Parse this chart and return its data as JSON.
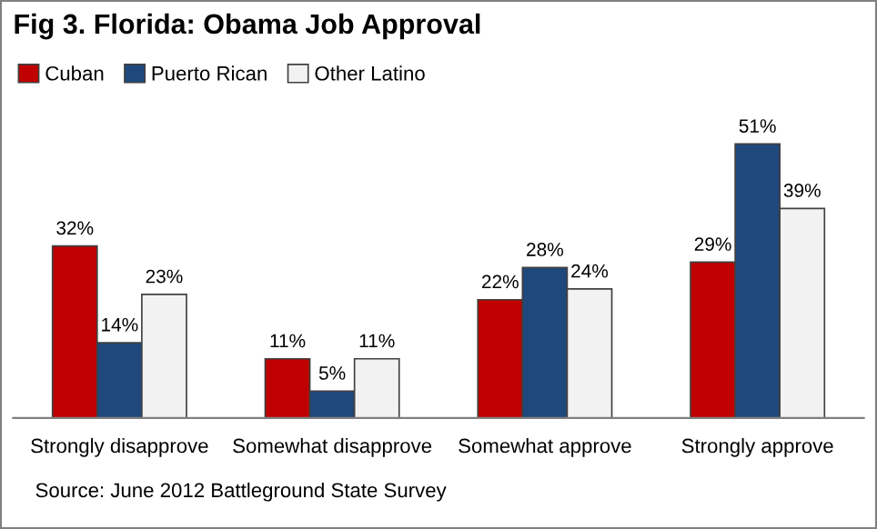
{
  "chart_data": {
    "type": "bar",
    "title": "Fig 3. Florida: Obama Job Approval",
    "categories": [
      "Strongly disapprove",
      "Somewhat disapprove",
      "Somewhat approve",
      "Strongly approve"
    ],
    "series": [
      {
        "name": "Cuban",
        "color": "#c00000",
        "values": [
          32,
          11,
          22,
          29
        ],
        "value_labels": [
          "32%",
          "11%",
          "22%",
          "29%"
        ]
      },
      {
        "name": "Puerto Rican",
        "color": "#1f497d",
        "values": [
          14,
          5,
          28,
          51
        ],
        "value_labels": [
          "14%",
          "5%",
          "28%",
          "51%"
        ]
      },
      {
        "name": "Other Latino",
        "color": "#f2f2f2",
        "values": [
          23,
          11,
          24,
          39
        ],
        "value_labels": [
          "23%",
          "11%",
          "24%",
          "39%"
        ]
      }
    ],
    "grid": false,
    "legend": "top left",
    "annotations": [
      "Source: June 2012 Battleground State Survey"
    ]
  }
}
